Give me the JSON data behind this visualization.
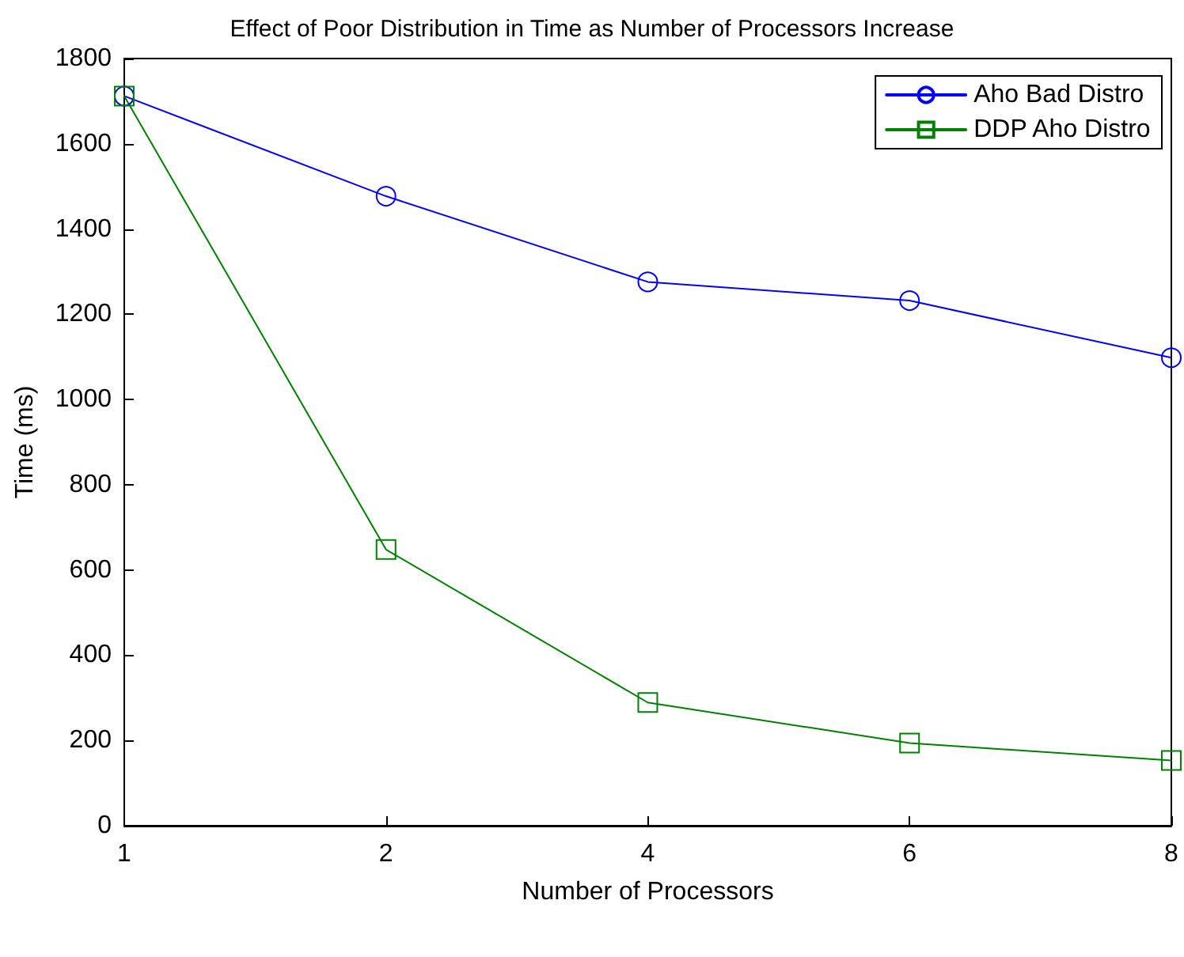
{
  "chart_data": {
    "type": "line",
    "title": "Effect of Poor Distribution in Time as Number of Processors Increase",
    "xlabel": "Number of Processors",
    "ylabel": "Time (ms)",
    "categories": [
      "1",
      "2",
      "4",
      "6",
      "8"
    ],
    "series": [
      {
        "name": "Aho Bad Distro",
        "color": "#0000ff",
        "marker": "circle",
        "values": [
          1712,
          1477,
          1276,
          1232,
          1098
        ]
      },
      {
        "name": "DDP Aho Distro",
        "color": "#008000",
        "marker": "square",
        "values": [
          1712,
          648,
          289,
          194,
          153
        ]
      }
    ],
    "ylim": [
      0,
      1800
    ],
    "yticks": [
      0,
      200,
      400,
      600,
      800,
      1000,
      1200,
      1400,
      1600,
      1800
    ],
    "grid": false,
    "legend": "top right",
    "line_style": "solid"
  }
}
